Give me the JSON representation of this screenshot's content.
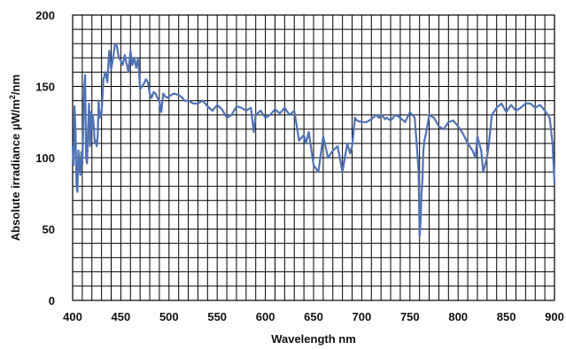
{
  "chart_data": {
    "type": "line",
    "xlabel": "Wavelength nm",
    "ylabel_parts": [
      "Absolute irradiance µW/m",
      "2",
      "/nm"
    ],
    "xlim": [
      400,
      900
    ],
    "ylim": [
      0,
      200
    ],
    "x_ticks": [
      400,
      450,
      500,
      550,
      600,
      650,
      700,
      750,
      800,
      850,
      900
    ],
    "y_ticks": [
      0,
      50,
      100,
      150,
      200
    ],
    "x_tick_labels": [
      "400",
      "450",
      "500",
      "550",
      "600",
      "650",
      "700",
      "750",
      "800",
      "850",
      "900"
    ],
    "y_tick_labels": [
      "0",
      "50",
      "100",
      "150",
      "200"
    ],
    "grid": true,
    "grid_minor_x": 10,
    "grid_minor_y": 10,
    "line_color": "#4f72b5",
    "grid_color": "#000000",
    "series": [
      {
        "x": [
          400,
          401,
          402,
          403,
          404,
          405,
          406,
          407,
          408,
          409,
          410,
          411,
          412,
          413,
          414,
          415,
          416,
          417,
          418,
          419,
          420,
          421,
          422,
          423,
          424,
          425,
          426,
          427,
          428,
          429,
          430,
          432,
          434,
          436,
          438,
          440,
          442,
          444,
          446,
          448,
          450,
          452,
          454,
          456,
          458,
          460,
          462,
          464,
          466,
          468,
          470,
          472,
          474,
          476,
          478,
          480,
          482,
          484,
          486,
          488,
          490,
          492,
          494,
          496,
          498,
          500,
          505,
          510,
          512,
          514,
          516,
          520,
          525,
          530,
          535,
          540,
          545,
          550,
          555,
          560,
          565,
          570,
          575,
          580,
          585,
          588,
          590,
          595,
          600,
          605,
          610,
          615,
          620,
          625,
          630,
          635,
          640,
          642,
          645,
          650,
          655,
          660,
          665,
          670,
          675,
          680,
          685,
          688,
          690,
          693,
          695,
          700,
          705,
          710,
          715,
          718,
          720,
          722,
          724,
          726,
          728,
          730,
          735,
          740,
          745,
          750,
          755,
          757,
          759,
          760,
          761,
          762,
          763,
          764,
          765,
          767,
          770,
          775,
          780,
          785,
          790,
          795,
          800,
          805,
          810,
          815,
          818,
          820,
          822,
          824,
          826,
          828,
          830,
          832,
          835,
          840,
          845,
          850,
          855,
          860,
          865,
          870,
          875,
          880,
          885,
          890,
          895,
          898,
          900
        ],
        "y": [
          108,
          95,
          136,
          118,
          80,
          76,
          105,
          96,
          88,
          104,
          95,
          122,
          150,
          158,
          100,
          96,
          120,
          138,
          108,
          132,
          120,
          130,
          122,
          110,
          112,
          108,
          115,
          140,
          128,
          132,
          130,
          155,
          160,
          153,
          175,
          162,
          170,
          180,
          178,
          170,
          168,
          165,
          172,
          166,
          160,
          175,
          165,
          170,
          163,
          170,
          148,
          150,
          152,
          155,
          153,
          145,
          142,
          146,
          145,
          142,
          140,
          132,
          145,
          143,
          142,
          143,
          145,
          144,
          143,
          142,
          140,
          140,
          138,
          138,
          140,
          136,
          133,
          137,
          134,
          128,
          130,
          136,
          135,
          133,
          135,
          118,
          130,
          133,
          128,
          130,
          134,
          131,
          135,
          130,
          133,
          112,
          116,
          110,
          118,
          95,
          90,
          115,
          100,
          105,
          108,
          90,
          110,
          103,
          108,
          128,
          126,
          125,
          125,
          127,
          130,
          128,
          130,
          129,
          127,
          128,
          127,
          126,
          130,
          128,
          125,
          132,
          128,
          110,
          90,
          45,
          55,
          75,
          85,
          105,
          112,
          118,
          130,
          128,
          122,
          120,
          125,
          126,
          122,
          117,
          110,
          105,
          100,
          115,
          110,
          105,
          90,
          95,
          100,
          110,
          130,
          135,
          138,
          132,
          137,
          133,
          135,
          138,
          138,
          135,
          137,
          133,
          128,
          110,
          82
        ]
      }
    ]
  }
}
